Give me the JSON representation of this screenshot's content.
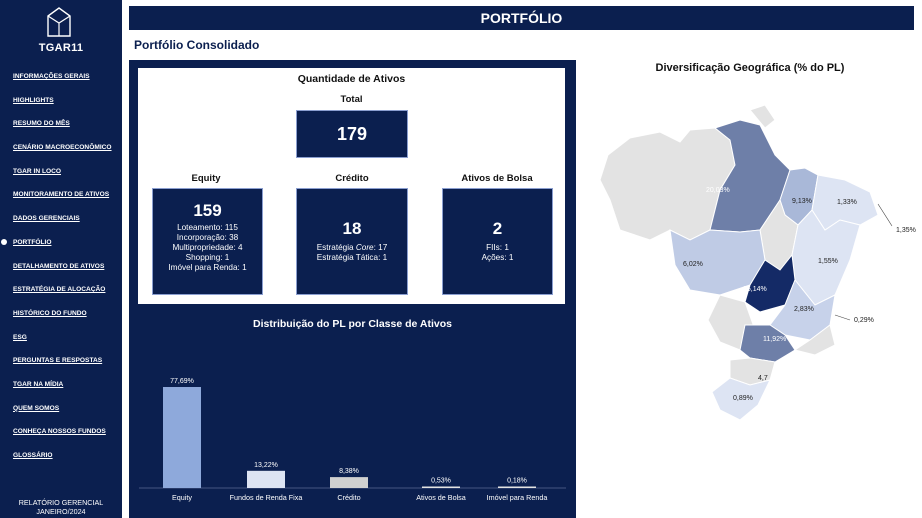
{
  "sidebar": {
    "brand": "TGAR11",
    "items": [
      {
        "label": "INFORMAÇÕES GERAIS"
      },
      {
        "label": "HIGHLIGHTS"
      },
      {
        "label": "RESUMO DO MÊS"
      },
      {
        "label": "CENÁRIO MACROECONÔMICO"
      },
      {
        "label": "TGAR IN LOCO"
      },
      {
        "label": "MONITORAMENTO DE ATIVOS"
      },
      {
        "label": "DADOS GERENCIAIS"
      },
      {
        "label": "PORTFÓLIO"
      },
      {
        "label": "DETALHAMENTO DE ATIVOS"
      },
      {
        "label": "ESTRATÉGIA DE ALOCAÇÃO"
      },
      {
        "label": "HISTÓRICO DO FUNDO"
      },
      {
        "label": "ESG"
      },
      {
        "label": "PERGUNTAS E RESPOSTAS"
      },
      {
        "label": "TGAR NA MÍDIA"
      },
      {
        "label": "QUEM SOMOS"
      },
      {
        "label": "CONHEÇA NOSSOS FUNDOS"
      },
      {
        "label": "GLOSSÁRIO"
      }
    ],
    "active_item": "PORTFÓLIO",
    "footer_line1": "RELATÓRIO GERENCIAL",
    "footer_line2": "JANEIRO/2024"
  },
  "header": {
    "title": "PORTFÓLIO",
    "subtitle": "Portfólio Consolidado"
  },
  "assets": {
    "title": "Quantidade de Ativos",
    "total_label": "Total",
    "total_value": "179",
    "equity": {
      "title": "Equity",
      "value": "159",
      "lines": [
        "Loteamento: 115",
        "Incorporação: 38",
        "Multipropriedade: 4",
        "Shopping: 1",
        "Imóvel para Renda: 1"
      ]
    },
    "credito": {
      "title": "Crédito",
      "value": "18",
      "line1_prefix": "Estratégia ",
      "line1_italic": "Core",
      "line1_suffix": ": 17",
      "line2": "Estratégia Tática: 1"
    },
    "bolsa": {
      "title": "Ativos de Bolsa",
      "value": "2",
      "lines": [
        "FIIs: 1",
        "Ações: 1"
      ]
    }
  },
  "distribution": {
    "title": "Distribuição do PL por Classe de Ativos"
  },
  "chart_data": {
    "type": "bar",
    "categories": [
      "Equity",
      "Fundos de Renda Fixa",
      "Crédito",
      "Ativos de Bolsa",
      "Imóvel para Renda"
    ],
    "values": [
      77.69,
      13.22,
      8.38,
      0.53,
      0.18
    ],
    "labels": [
      "77,69%",
      "13,22%",
      "8,38%",
      "0,53%",
      "0,18%"
    ],
    "colors": [
      "#8ea9db",
      "#dde4f3",
      "#d0d0d0",
      "#e3e3e3",
      "#e3e3e3"
    ],
    "ylim": [
      0,
      100
    ]
  },
  "map": {
    "title": "Diversificação Geográfica (% do PL)",
    "labels": [
      "20,03%",
      "9,13%",
      "1,33%",
      "1,35%",
      "6,02%",
      "1,55%",
      "35,14%",
      "2,83%",
      "0,29%",
      "11,92%",
      "4,7",
      "0,89%"
    ]
  }
}
